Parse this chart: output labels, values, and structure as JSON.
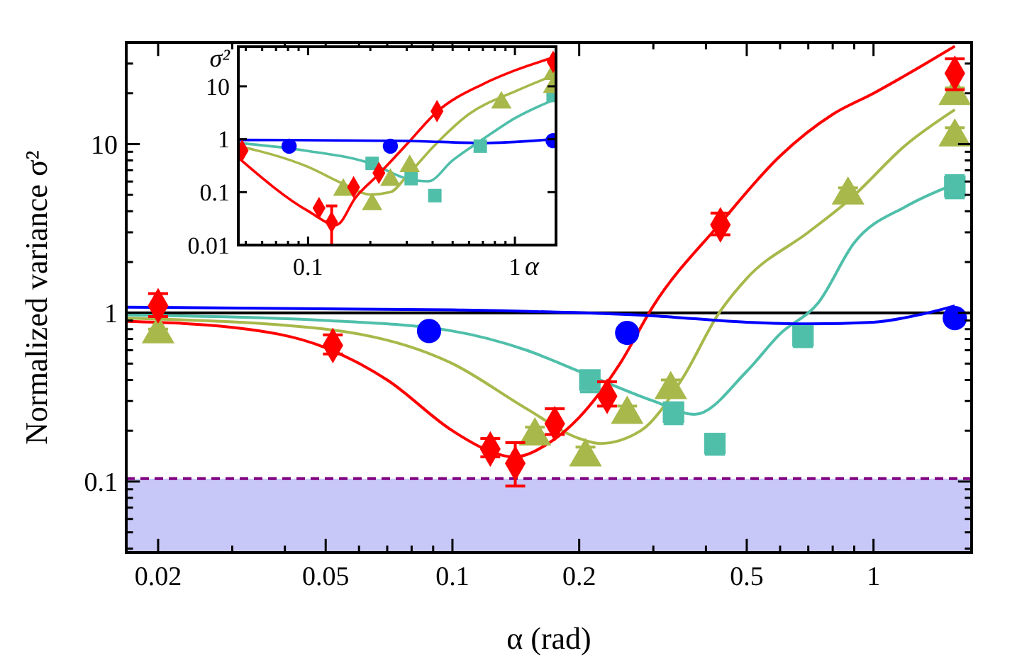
{
  "chart_data": [
    {
      "type": "scatter",
      "xlabel": "α (rad)",
      "ylabel": "Normalized variance σ²",
      "log": "xy",
      "xlim": [
        0.0168,
        1.71
      ],
      "ylim": [
        0.038,
        40
      ],
      "xticks": [
        0.02,
        {
          "value": 0.03,
          "label": null
        },
        {
          "value": 0.04,
          "label": null
        },
        0.05,
        {
          "value": 0.06,
          "label": null
        },
        {
          "value": 0.07,
          "label": null
        },
        {
          "value": 0.08,
          "label": null
        },
        {
          "value": 0.09,
          "label": null
        },
        0.1,
        0.2,
        {
          "value": 0.3,
          "label": null
        },
        {
          "value": 0.4,
          "label": null
        },
        0.5,
        {
          "value": 0.6,
          "label": null
        },
        {
          "value": 0.7,
          "label": null
        },
        {
          "value": 0.8,
          "label": null
        },
        {
          "value": 0.9,
          "label": null
        },
        1
      ],
      "yticks": [
        {
          "value": 0.04,
          "label": null
        },
        {
          "value": 0.05,
          "label": null
        },
        {
          "value": 0.06,
          "label": null
        },
        {
          "value": 0.07,
          "label": null
        },
        {
          "value": 0.08,
          "label": null
        },
        {
          "value": 0.09,
          "label": null
        },
        0.1,
        {
          "value": 0.2,
          "label": null
        },
        {
          "value": 0.3,
          "label": null
        },
        {
          "value": 0.4,
          "label": null
        },
        {
          "value": 0.5,
          "label": null
        },
        {
          "value": 0.6,
          "label": null
        },
        {
          "value": 0.7,
          "label": null
        },
        {
          "value": 0.8,
          "label": null
        },
        {
          "value": 0.9,
          "label": null
        },
        1,
        {
          "value": 2,
          "label": null
        },
        {
          "value": 3,
          "label": null
        },
        {
          "value": 4,
          "label": null
        },
        {
          "value": 5,
          "label": null
        },
        {
          "value": 6,
          "label": null
        },
        {
          "value": 7,
          "label": null
        },
        {
          "value": 8,
          "label": null
        },
        {
          "value": 9,
          "label": null
        },
        10,
        {
          "value": 20,
          "label": null
        },
        {
          "value": 30,
          "label": null
        }
      ],
      "bands": [
        {
          "axis": "y",
          "from": 0.038,
          "to": 0.104,
          "color": "#c8c8f8"
        }
      ],
      "ref_lines": [
        {
          "axis": "y",
          "value": 0.104,
          "color": "#800080",
          "line_style": "dashed"
        },
        {
          "axis": "y",
          "value": 1,
          "color": "#000000",
          "line_style": "solid"
        }
      ],
      "series": [
        {
          "type": "line",
          "color": "#4fbfaa",
          "x": [
            0.0168,
            0.05,
            0.1,
            0.15,
            0.2,
            0.3,
            0.376,
            0.5,
            0.6,
            0.74,
            0.9,
            1.2,
            1.56
          ],
          "values": [
            0.97,
            0.9,
            0.78,
            0.6,
            0.45,
            0.3,
            0.25,
            0.45,
            0.75,
            1.15,
            2.6,
            4.3,
            5.8
          ]
        },
        {
          "type": "line",
          "color": "#a8b84a",
          "x": [
            0.0168,
            0.05,
            0.1,
            0.15,
            0.2,
            0.224,
            0.28,
            0.35,
            0.43,
            0.5,
            0.7,
            0.87,
            1.2,
            1.56
          ],
          "values": [
            0.93,
            0.8,
            0.5,
            0.27,
            0.18,
            0.168,
            0.2,
            0.4,
            1,
            1.6,
            3,
            4.6,
            10,
            16
          ]
        },
        {
          "type": "line",
          "color": "#ff0000",
          "x": [
            0.0168,
            0.03,
            0.05,
            0.07,
            0.1,
            0.12,
            0.14,
            0.17,
            0.2,
            0.25,
            0.3,
            0.433,
            0.6,
            0.8,
            1,
            1.3,
            1.56
          ],
          "values": [
            0.89,
            0.82,
            0.62,
            0.4,
            0.2,
            0.155,
            0.14,
            0.17,
            0.24,
            0.5,
            1.1,
            3.4,
            8.5,
            15,
            20,
            29,
            38
          ]
        },
        {
          "type": "line",
          "color": "#0000ff",
          "x": [
            0.0168,
            0.1,
            0.3,
            0.5,
            0.7,
            1,
            1.3,
            1.56
          ],
          "values": [
            1.08,
            1.04,
            0.96,
            0.88,
            0.86,
            0.88,
            0.98,
            1.1
          ]
        },
        {
          "color": "#4fbfaa",
          "marker": "square",
          "x": [
            0.212,
            0.335,
            0.42,
            0.68,
            1.56
          ],
          "values": [
            0.4,
            0.258,
            0.168,
            0.73,
            5.6
          ],
          "errors": [
            [
              0.34,
              0.4
            ],
            [
              0.22,
              0.258
            ],
            [
              0.145,
              0.168
            ],
            [
              0.63,
              0.73
            ],
            [
              4.8,
              6.5
            ]
          ]
        },
        {
          "color": "#a8b84a",
          "marker": "triangle",
          "x": [
            0.02,
            0.157,
            0.207,
            0.26,
            0.33,
            0.87,
            1.56,
            1.56
          ],
          "values": [
            0.75,
            0.186,
            0.14,
            0.25,
            0.35,
            4.98,
            19.4,
            11
          ],
          "errors": [
            [
              0.7,
              0.8
            ],
            [
              0.17,
              0.21
            ],
            [
              0.13,
              0.16
            ],
            [
              0.23,
              0.28
            ],
            [
              0.32,
              0.4
            ],
            [
              4.6,
              5.5
            ],
            [
              17.5,
              21.5
            ],
            [
              10,
              12.5
            ]
          ]
        },
        {
          "color": "#0000ff",
          "marker": "circle",
          "x": [
            0.088,
            0.26,
            1.56
          ],
          "values": [
            0.78,
            0.76,
            0.93
          ]
        },
        {
          "color": "#ff0000",
          "marker": "diamond",
          "x": [
            0.02,
            0.052,
            0.123,
            0.141,
            0.175,
            0.233,
            0.433,
            1.56
          ],
          "values": [
            1.1,
            0.64,
            0.156,
            0.128,
            0.22,
            0.32,
            3.32,
            26.3
          ],
          "errors": [
            [
              0.95,
              1.3
            ],
            [
              0.57,
              0.74
            ],
            [
              0.14,
              0.18
            ],
            [
              0.094,
              0.17
            ],
            [
              0.19,
              0.27
            ],
            [
              0.28,
              0.39
            ],
            [
              2.9,
              3.9
            ],
            [
              21,
              32
            ]
          ]
        }
      ]
    },
    {
      "type": "scatter",
      "xlabel": "α",
      "ylabel": "σ²",
      "log": "xy",
      "xlim": [
        0.046,
        1.58
      ],
      "ylim": [
        0.01,
        56
      ],
      "xticks": [
        {
          "value": 0.05,
          "label": null
        },
        {
          "value": 0.06,
          "label": null
        },
        {
          "value": 0.07,
          "label": null
        },
        {
          "value": 0.08,
          "label": null
        },
        {
          "value": 0.09,
          "label": null
        },
        0.1,
        {
          "value": 0.2,
          "label": null
        },
        {
          "value": 0.3,
          "label": null
        },
        {
          "value": 0.4,
          "label": null
        },
        {
          "value": 0.5,
          "label": null
        },
        {
          "value": 0.6,
          "label": null
        },
        {
          "value": 0.7,
          "label": null
        },
        {
          "value": 0.8,
          "label": null
        },
        {
          "value": 0.9,
          "label": null
        },
        1
      ],
      "yticks": [
        0.01,
        0.1,
        1,
        10
      ],
      "series": [
        {
          "type": "line",
          "color": "#4fbfaa",
          "x": [
            0.046,
            0.1,
            0.2,
            0.3,
            0.38,
            0.5,
            0.7,
            1,
            1.53
          ],
          "values": [
            0.85,
            0.6,
            0.35,
            0.18,
            0.16,
            0.4,
            1,
            2.5,
            5.5
          ]
        },
        {
          "type": "line",
          "color": "#a8b84a",
          "x": [
            0.046,
            0.1,
            0.15,
            0.2,
            0.25,
            0.3,
            0.4,
            0.6,
            1,
            1.53
          ],
          "values": [
            0.75,
            0.3,
            0.14,
            0.09,
            0.1,
            0.2,
            0.7,
            3,
            8,
            16
          ]
        },
        {
          "type": "line",
          "color": "#ff0000",
          "x": [
            0.046,
            0.1,
            0.137,
            0.17,
            0.22,
            0.3,
            0.42,
            0.7,
            1,
            1.53
          ],
          "values": [
            0.45,
            0.044,
            0.024,
            0.08,
            0.22,
            0.8,
            3.3,
            11,
            20,
            35
          ]
        },
        {
          "type": "line",
          "color": "#0000ff",
          "x": [
            0.046,
            0.3,
            0.7,
            1.53
          ],
          "values": [
            0.97,
            0.93,
            0.85,
            1
          ]
        },
        {
          "color": "#4fbfaa",
          "marker": "square",
          "x": [
            0.204,
            0.315,
            0.41,
            0.68,
            1.53
          ],
          "values": [
            0.35,
            0.18,
            0.086,
            0.74,
            6.7
          ]
        },
        {
          "color": "#a8b84a",
          "marker": "triangle",
          "x": [
            0.148,
            0.204,
            0.25,
            0.31,
            0.86,
            1.53,
            1.53
          ],
          "values": [
            0.11,
            0.059,
            0.17,
            0.31,
            4.9,
            17,
            9.7
          ]
        },
        {
          "color": "#0000ff",
          "marker": "circle",
          "x": [
            0.081,
            0.25,
            1.53
          ],
          "values": [
            0.74,
            0.74,
            0.94
          ]
        },
        {
          "color": "#ff0000",
          "marker": "diamond",
          "x": [
            0.048,
            0.113,
            0.13,
            0.166,
            0.22,
            0.42,
            1.53
          ],
          "values": [
            0.61,
            0.05,
            0.027,
            0.124,
            0.23,
            3.4,
            29
          ],
          "errors": [
            null,
            null,
            [
              0.01,
              0.055
            ],
            null,
            null,
            null,
            null
          ]
        }
      ]
    }
  ]
}
